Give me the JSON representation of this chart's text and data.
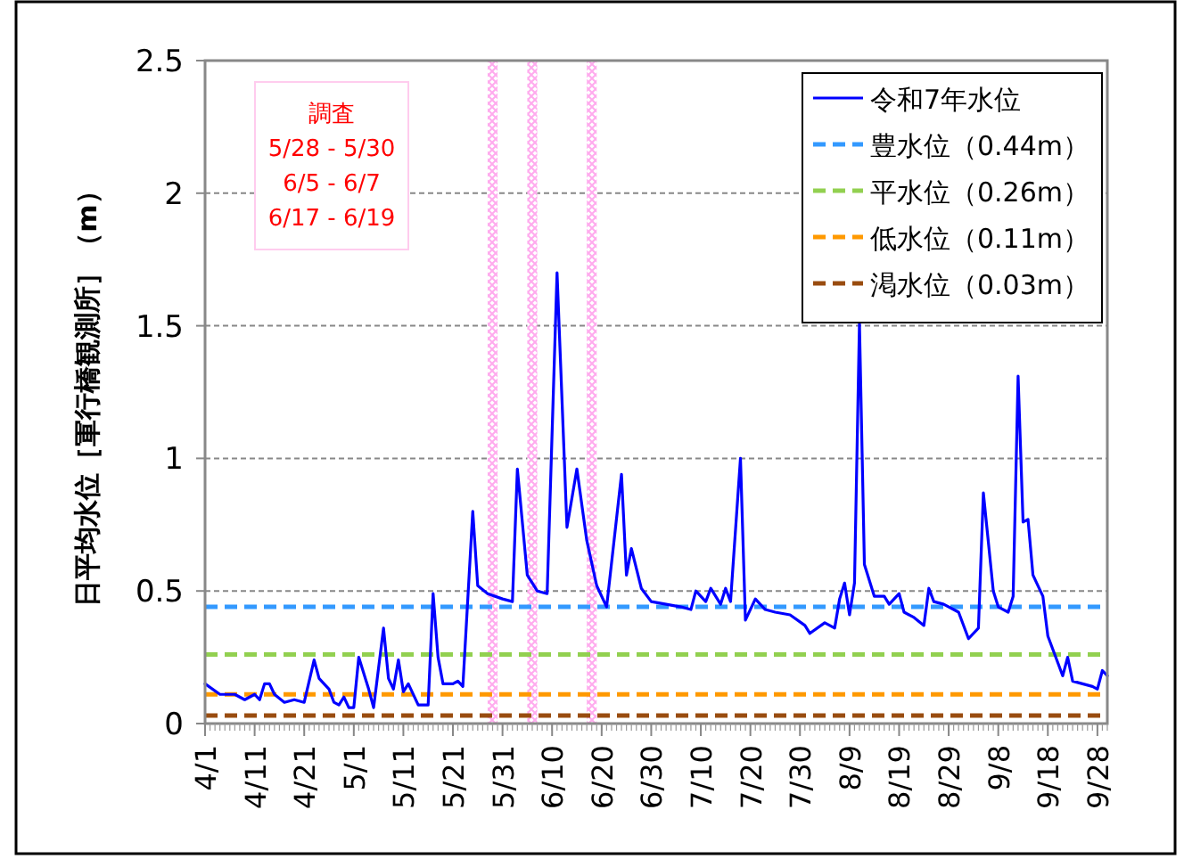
{
  "chart_data": {
    "type": "line",
    "ylabel": "日平均水位［軍行橋観測所］（m）",
    "x": [
      "--04-01",
      "--04-04",
      "--04-07",
      "--04-09",
      "--04-11",
      "--04-12",
      "--04-13",
      "--04-14",
      "--04-15",
      "--04-17",
      "--04-19",
      "--04-21",
      "--04-23",
      "--04-24",
      "--04-26",
      "--04-27",
      "--04-28",
      "--04-29",
      "--04-30",
      "--05-01",
      "--05-02",
      "--05-04",
      "--05-05",
      "--05-07",
      "--05-08",
      "--05-09",
      "--05-10",
      "--05-11",
      "--05-12",
      "--05-14",
      "--05-16",
      "--05-17",
      "--05-18",
      "--05-19",
      "--05-21",
      "--05-22",
      "--05-23",
      "--05-25",
      "--05-26",
      "--05-28",
      "--05-31",
      "--06-02",
      "--06-03",
      "--06-05",
      "--06-07",
      "--06-09",
      "--06-11",
      "--06-13",
      "--06-15",
      "--06-17",
      "--06-19",
      "--06-21",
      "--06-24",
      "--06-25",
      "--06-26",
      "--06-28",
      "--06-30",
      "--07-03",
      "--07-06",
      "--07-08",
      "--07-09",
      "--07-11",
      "--07-12",
      "--07-14",
      "--07-15",
      "--07-16",
      "--07-18",
      "--07-19",
      "--07-21",
      "--07-23",
      "--07-25",
      "--07-28",
      "--07-31",
      "--08-01",
      "--08-04",
      "--08-06",
      "--08-07",
      "--08-08",
      "--08-09",
      "--08-10",
      "--08-11",
      "--08-12",
      "--08-14",
      "--08-16",
      "--08-17",
      "--08-19",
      "--08-20",
      "--08-22",
      "--08-24",
      "--08-25",
      "--08-26",
      "--08-28",
      "--08-31",
      "--09-02",
      "--09-04",
      "--09-05",
      "--09-07",
      "--09-08",
      "--09-10",
      "--09-11",
      "--09-12",
      "--09-13",
      "--09-14",
      "--09-15",
      "--09-17",
      "--09-18",
      "--09-20",
      "--09-21",
      "--09-22",
      "--09-23",
      "--09-25",
      "--09-27",
      "--09-28",
      "--09-29",
      "--09-30"
    ],
    "series": [
      {
        "name": "令和7年水位",
        "color": "#0000ff",
        "values": [
          0.15,
          0.11,
          0.11,
          0.09,
          0.11,
          0.09,
          0.15,
          0.15,
          0.11,
          0.08,
          0.09,
          0.08,
          0.24,
          0.17,
          0.13,
          0.08,
          0.07,
          0.1,
          0.06,
          0.06,
          0.25,
          0.13,
          0.06,
          0.36,
          0.17,
          0.13,
          0.24,
          0.12,
          0.15,
          0.07,
          0.07,
          0.49,
          0.25,
          0.15,
          0.15,
          0.16,
          0.14,
          0.8,
          0.52,
          0.49,
          0.47,
          0.46,
          0.96,
          0.56,
          0.5,
          0.49,
          1.7,
          0.74,
          0.96,
          0.69,
          0.52,
          0.44,
          0.94,
          0.56,
          0.66,
          0.51,
          0.46,
          0.45,
          0.44,
          0.43,
          0.5,
          0.46,
          0.51,
          0.45,
          0.51,
          0.46,
          1.0,
          0.39,
          0.47,
          0.43,
          0.42,
          0.41,
          0.37,
          0.34,
          0.38,
          0.36,
          0.47,
          0.53,
          0.41,
          0.53,
          1.51,
          0.6,
          0.48,
          0.48,
          0.45,
          0.49,
          0.42,
          0.4,
          0.37,
          0.51,
          0.46,
          0.45,
          0.42,
          0.32,
          0.36,
          0.87,
          0.5,
          0.44,
          0.42,
          0.48,
          1.31,
          0.76,
          0.77,
          0.56,
          0.48,
          0.33,
          0.23,
          0.18,
          0.25,
          0.16,
          0.15,
          0.14,
          0.13,
          0.2,
          0.18
        ]
      }
    ],
    "xlim": [
      "--04-01",
      "--09-30"
    ],
    "xticks": [
      {
        "value": "--04-01",
        "label": "4/1"
      },
      {
        "value": "--04-11",
        "label": "4/11"
      },
      {
        "value": "--04-21",
        "label": "4/21"
      },
      {
        "value": "--05-01",
        "label": "5/1"
      },
      {
        "value": "--05-11",
        "label": "5/11"
      },
      {
        "value": "--05-21",
        "label": "5/21"
      },
      {
        "value": "--05-31",
        "label": "5/31"
      },
      {
        "value": "--06-10",
        "label": "6/10"
      },
      {
        "value": "--06-20",
        "label": "6/20"
      },
      {
        "value": "--06-30",
        "label": "6/30"
      },
      {
        "value": "--07-10",
        "label": "7/10"
      },
      {
        "value": "--07-20",
        "label": "7/20"
      },
      {
        "value": "--07-30",
        "label": "7/30"
      },
      {
        "value": "--08-09",
        "label": "8/9"
      },
      {
        "value": "--08-19",
        "label": "8/19"
      },
      {
        "value": "--08-29",
        "label": "8/29"
      },
      {
        "value": "--09-08",
        "label": "9/8"
      },
      {
        "value": "--09-18",
        "label": "9/18"
      },
      {
        "value": "--09-28",
        "label": "9/28"
      }
    ],
    "ylim": [
      0,
      2.5
    ],
    "yticks": [
      0,
      0.5,
      1,
      1.5,
      2,
      2.5
    ],
    "grid": "y",
    "legend": "top right",
    "ref_lines": [
      {
        "axis": "y",
        "value": 0.44,
        "label": "豊水位（0.44m）",
        "color": "#3399ff",
        "line_style": "dashed"
      },
      {
        "axis": "y",
        "value": 0.26,
        "label": "平水位（0.26m）",
        "color": "#92d050",
        "line_style": "dashed"
      },
      {
        "axis": "y",
        "value": 0.11,
        "label": "低水位（0.11m）",
        "color": "#ff9900",
        "line_style": "dashed"
      },
      {
        "axis": "y",
        "value": 0.03,
        "label": "渇水位（0.03m）",
        "color": "#994c0f",
        "line_style": "dashed"
      }
    ],
    "bands": [
      {
        "axis": "x",
        "from": "--05-28",
        "to": "--05-30",
        "color": "#ffaaee"
      },
      {
        "axis": "x",
        "from": "--06-05",
        "to": "--06-07",
        "color": "#ffaaee"
      },
      {
        "axis": "x",
        "from": "--06-17",
        "to": "--06-19",
        "color": "#ffaaee"
      }
    ],
    "annotations": [
      "調査\n5/28 - 5/30\n6/5 - 6/7\n6/17 - 6/19"
    ]
  }
}
